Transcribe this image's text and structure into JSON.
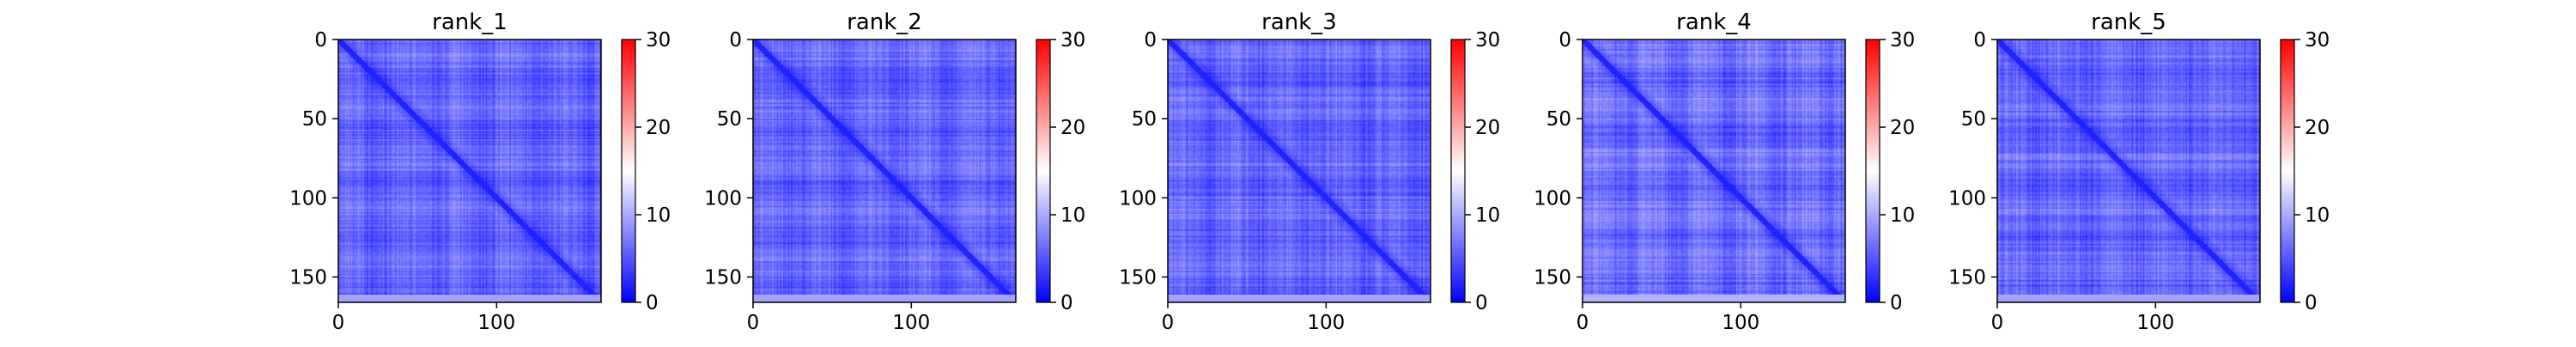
{
  "chart_data": [
    {
      "type": "heatmap",
      "title": "rank_1",
      "matrix_size": 166,
      "xlim": [
        0,
        166
      ],
      "ylim": [
        166,
        0
      ],
      "x_ticks": [
        0,
        100
      ],
      "y_ticks": [
        0,
        50,
        100,
        150
      ],
      "colorbar": {
        "min": 0,
        "max": 30,
        "ticks": [
          0,
          10,
          20,
          30
        ],
        "colormap": "bwr"
      },
      "value_range_estimate": [
        1,
        10
      ],
      "diagonal_value_estimate": 2
    },
    {
      "type": "heatmap",
      "title": "rank_2",
      "matrix_size": 166,
      "xlim": [
        0,
        166
      ],
      "ylim": [
        166,
        0
      ],
      "x_ticks": [
        0,
        100
      ],
      "y_ticks": [
        0,
        50,
        100,
        150
      ],
      "colorbar": {
        "min": 0,
        "max": 30,
        "ticks": [
          0,
          10,
          20,
          30
        ],
        "colormap": "bwr"
      },
      "value_range_estimate": [
        1,
        10
      ],
      "diagonal_value_estimate": 2
    },
    {
      "type": "heatmap",
      "title": "rank_3",
      "matrix_size": 166,
      "xlim": [
        0,
        166
      ],
      "ylim": [
        166,
        0
      ],
      "x_ticks": [
        0,
        100
      ],
      "y_ticks": [
        0,
        50,
        100,
        150
      ],
      "colorbar": {
        "min": 0,
        "max": 30,
        "ticks": [
          0,
          10,
          20,
          30
        ],
        "colormap": "bwr"
      },
      "value_range_estimate": [
        1,
        10
      ],
      "diagonal_value_estimate": 2
    },
    {
      "type": "heatmap",
      "title": "rank_4",
      "matrix_size": 166,
      "xlim": [
        0,
        166
      ],
      "ylim": [
        166,
        0
      ],
      "x_ticks": [
        0,
        100
      ],
      "y_ticks": [
        0,
        50,
        100,
        150
      ],
      "colorbar": {
        "min": 0,
        "max": 30,
        "ticks": [
          0,
          10,
          20,
          30
        ],
        "colormap": "bwr"
      },
      "value_range_estimate": [
        1,
        11
      ],
      "diagonal_value_estimate": 2
    },
    {
      "type": "heatmap",
      "title": "rank_5",
      "matrix_size": 166,
      "xlim": [
        0,
        166
      ],
      "ylim": [
        166,
        0
      ],
      "x_ticks": [
        0,
        100
      ],
      "y_ticks": [
        0,
        50,
        100,
        150
      ],
      "colorbar": {
        "min": 0,
        "max": 30,
        "ticks": [
          0,
          10,
          20,
          30
        ],
        "colormap": "bwr"
      },
      "value_range_estimate": [
        1,
        10
      ],
      "diagonal_value_estimate": 2
    }
  ],
  "colors": {
    "low": "#0000ff",
    "mid": "#ffffff",
    "high": "#ff0000",
    "axis": "#000000"
  }
}
